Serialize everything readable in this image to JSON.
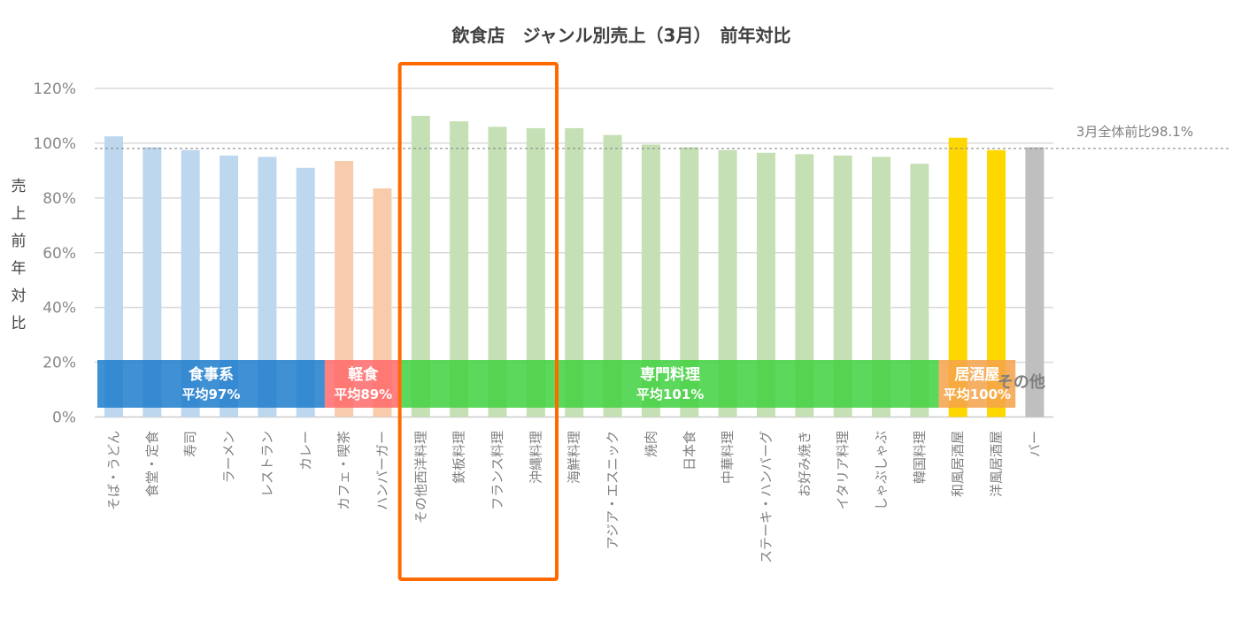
{
  "chart_data": {
    "type": "bar",
    "title": "飲食店　ジャンル別売上（3月）　前年対比",
    "ylabel": "売上前年対比",
    "ylim": [
      0,
      120
    ],
    "yticks": [
      "0%",
      "20%",
      "40%",
      "60%",
      "80%",
      "100%",
      "120%"
    ],
    "grid": true,
    "categories": [
      "そば・うどん",
      "食堂・定食",
      "寿司",
      "ラーメン",
      "レストラン",
      "カレー",
      "カフェ・喫茶",
      "ハンバーガー",
      "その他西洋料理",
      "鉄板料理",
      "フランス料理",
      "沖縄料理",
      "海鮮料理",
      "アジア・エスニック",
      "焼肉",
      "日本食",
      "中華料理",
      "ステーキ・ハンバーグ",
      "お好み焼き",
      "イタリア料理",
      "しゃぶしゃぶ",
      "韓国料理",
      "和風居酒屋",
      "洋風居酒屋",
      "バー"
    ],
    "values": [
      102.5,
      98.5,
      97.5,
      95.5,
      95.0,
      91.0,
      93.5,
      83.5,
      110.0,
      108.0,
      106.0,
      105.5,
      105.5,
      103.0,
      99.5,
      98.5,
      97.5,
      96.5,
      96.0,
      95.5,
      95.0,
      92.5,
      102.0,
      97.5,
      98.5
    ],
    "groups": [
      {
        "name": "食事系",
        "average_label": "平均97%",
        "start": 0,
        "end": 5,
        "bar_color": "#bdd7ee",
        "band_color": "#1f7ccc"
      },
      {
        "name": "軽食",
        "average_label": "平均89%",
        "start": 6,
        "end": 7,
        "bar_color": "#f8cbad",
        "band_color": "#ff6a6a"
      },
      {
        "name": "専門料理",
        "average_label": "平均101%",
        "start": 8,
        "end": 21,
        "bar_color": "#c5e0b4",
        "band_color": "#3fd13f"
      },
      {
        "name": "居酒屋",
        "average_label": "平均100%",
        "start": 22,
        "end": 23,
        "bar_color": "#ffd700",
        "band_color": "#f5a24a"
      },
      {
        "name": "その他",
        "average_label": "",
        "start": 24,
        "end": 24,
        "bar_color": "#bfbfbf",
        "band_color": ""
      }
    ],
    "reference_line": {
      "value": 98.1,
      "label": "3月全体前比98.1%"
    },
    "highlight": {
      "start": 8,
      "end": 11,
      "color": "#ff6a00"
    }
  }
}
